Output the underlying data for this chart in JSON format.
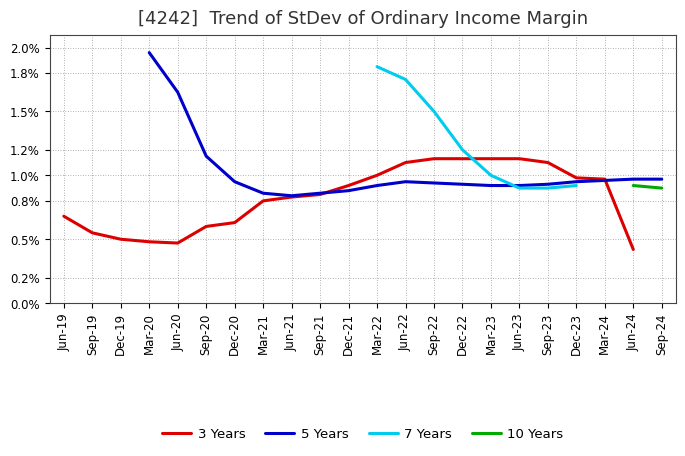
{
  "title": "[4242]  Trend of StDev of Ordinary Income Margin",
  "x_labels": [
    "Jun-19",
    "Sep-19",
    "Dec-19",
    "Mar-20",
    "Jun-20",
    "Sep-20",
    "Dec-20",
    "Mar-21",
    "Jun-21",
    "Sep-21",
    "Dec-21",
    "Mar-22",
    "Jun-22",
    "Sep-22",
    "Dec-22",
    "Mar-23",
    "Jun-23",
    "Sep-23",
    "Dec-23",
    "Mar-24",
    "Jun-24",
    "Sep-24"
  ],
  "series_order": [
    "3 Years",
    "5 Years",
    "7 Years",
    "10 Years"
  ],
  "series": {
    "3 Years": {
      "color": "#dd0000",
      "data": [
        0.0068,
        0.0055,
        0.005,
        0.0048,
        0.0047,
        0.006,
        0.0063,
        0.008,
        0.0083,
        0.0085,
        0.0092,
        0.01,
        0.011,
        0.0113,
        0.0113,
        0.0113,
        0.0113,
        0.011,
        0.0098,
        0.0097,
        0.0042,
        null
      ]
    },
    "5 Years": {
      "color": "#0000cc",
      "data": [
        null,
        null,
        null,
        0.0196,
        0.0165,
        0.0115,
        0.0095,
        0.0086,
        0.0084,
        0.0086,
        0.0088,
        0.0092,
        0.0095,
        0.0094,
        0.0093,
        0.0092,
        0.0092,
        0.0093,
        0.0095,
        0.0096,
        0.0097,
        0.0097
      ]
    },
    "7 Years": {
      "color": "#00ccee",
      "data": [
        null,
        null,
        null,
        null,
        null,
        null,
        null,
        null,
        null,
        null,
        null,
        0.0185,
        0.0175,
        0.015,
        0.012,
        0.01,
        0.009,
        0.009,
        0.0092,
        null,
        null,
        null
      ]
    },
    "10 Years": {
      "color": "#00aa00",
      "data": [
        null,
        null,
        null,
        null,
        null,
        null,
        null,
        null,
        null,
        null,
        null,
        null,
        null,
        null,
        null,
        null,
        null,
        null,
        null,
        null,
        0.0092,
        0.009
      ]
    }
  },
  "ylim": [
    0.0,
    0.021
  ],
  "yticks": [
    0.0,
    0.002,
    0.005,
    0.008,
    0.01,
    0.012,
    0.015,
    0.018,
    0.02
  ],
  "ytick_labels": [
    "0.0%",
    "0.2%",
    "0.5%",
    "0.8%",
    "1.0%",
    "1.2%",
    "1.5%",
    "1.8%",
    "2.0%"
  ],
  "background_color": "#ffffff",
  "grid_color": "#999999",
  "title_fontsize": 13,
  "tick_fontsize": 8.5,
  "legend_fontsize": 9.5
}
